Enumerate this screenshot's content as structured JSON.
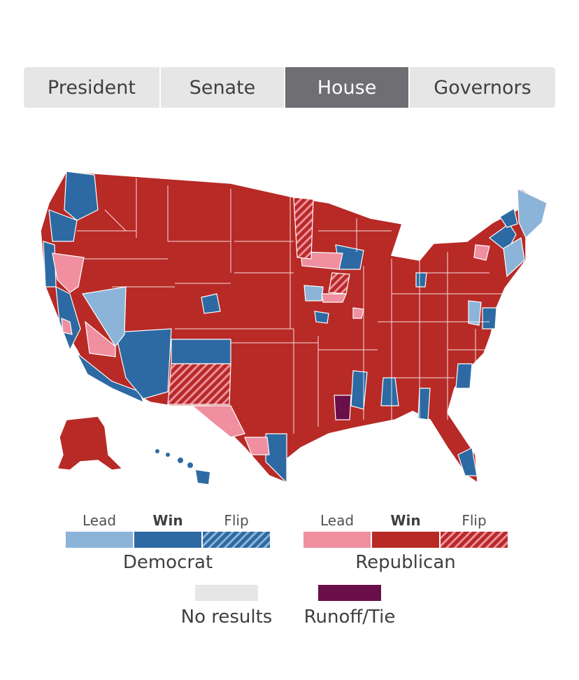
{
  "tabs": [
    {
      "label": "President",
      "active": false
    },
    {
      "label": "Senate",
      "active": false
    },
    {
      "label": "House",
      "active": true
    },
    {
      "label": "Governors",
      "active": false
    }
  ],
  "colors": {
    "dem_lead": "#8cb4d8",
    "dem_win": "#2d6aa3",
    "rep_lead": "#ef8f9f",
    "rep_win": "#b72a26",
    "no_results": "#e6e6e6",
    "runoff": "#6b0f4a"
  },
  "legend": {
    "democrat": {
      "name": "Democrat",
      "lead": "Lead",
      "win": "Win",
      "flip": "Flip"
    },
    "republican": {
      "name": "Republican",
      "lead": "Lead",
      "win": "Win",
      "flip": "Flip"
    },
    "no_results": "No results",
    "runoff": "Runoff/Tie"
  }
}
